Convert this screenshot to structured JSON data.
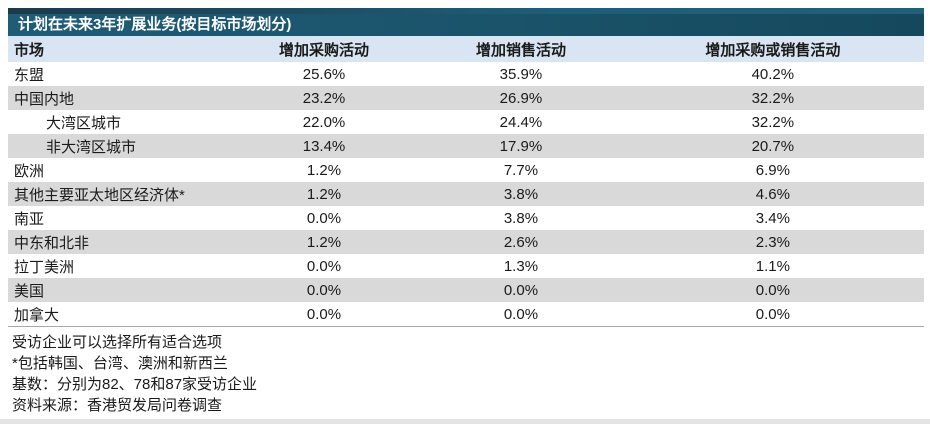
{
  "table": {
    "title": "计划在未来3年扩展业务(按目标市场划分)",
    "columns": [
      "市场",
      "增加采购活动",
      "增加销售活动",
      "增加采购或销售活动"
    ],
    "rows": [
      {
        "market": "东盟",
        "indent": false,
        "values": [
          "25.6%",
          "35.9%",
          "40.2%"
        ]
      },
      {
        "market": "中国内地",
        "indent": false,
        "values": [
          "23.2%",
          "26.9%",
          "32.2%"
        ]
      },
      {
        "market": "大湾区城市",
        "indent": true,
        "values": [
          "22.0%",
          "24.4%",
          "32.2%"
        ]
      },
      {
        "market": "非大湾区城市",
        "indent": true,
        "values": [
          "13.4%",
          "17.9%",
          "20.7%"
        ]
      },
      {
        "market": "欧洲",
        "indent": false,
        "values": [
          "1.2%",
          "7.7%",
          "6.9%"
        ]
      },
      {
        "market": "其他主要亚太地区经济体*",
        "indent": false,
        "values": [
          "1.2%",
          "3.8%",
          "4.6%"
        ]
      },
      {
        "market": "南亚",
        "indent": false,
        "values": [
          "0.0%",
          "3.8%",
          "3.4%"
        ]
      },
      {
        "market": "中东和北非",
        "indent": false,
        "values": [
          "1.2%",
          "2.6%",
          "2.3%"
        ]
      },
      {
        "market": "拉丁美洲",
        "indent": false,
        "values": [
          "0.0%",
          "1.3%",
          "1.1%"
        ]
      },
      {
        "market": "美国",
        "indent": false,
        "values": [
          "0.0%",
          "0.0%",
          "0.0%"
        ]
      },
      {
        "market": "加拿大",
        "indent": false,
        "values": [
          "0.0%",
          "0.0%",
          "0.0%"
        ]
      }
    ]
  },
  "footnotes": [
    "受访企业可以选择所有适合选项",
    "*包括韩国、台湾、澳洲和新西兰",
    "基数：分别为82、78和87家受访企业",
    "资料来源：香港贸发局问卷调查"
  ],
  "chart_data": {
    "type": "table",
    "title": "计划在未来3年扩展业务(按目标市场划分)",
    "categories": [
      "东盟",
      "中国内地",
      "大湾区城市",
      "非大湾区城市",
      "欧洲",
      "其他主要亚太地区经济体*",
      "南亚",
      "中东和北非",
      "拉丁美洲",
      "美国",
      "加拿大"
    ],
    "series": [
      {
        "name": "增加采购活动",
        "values": [
          25.6,
          23.2,
          22.0,
          13.4,
          1.2,
          1.2,
          0.0,
          1.2,
          0.0,
          0.0,
          0.0
        ]
      },
      {
        "name": "增加销售活动",
        "values": [
          35.9,
          26.9,
          24.4,
          17.9,
          7.7,
          3.8,
          3.8,
          2.6,
          1.3,
          0.0,
          0.0
        ]
      },
      {
        "name": "增加采购或销售活动",
        "values": [
          40.2,
          32.2,
          32.2,
          20.7,
          6.9,
          4.6,
          3.4,
          2.3,
          1.1,
          0.0,
          0.0
        ]
      }
    ]
  },
  "colors": {
    "title_bar_left": "#1F5C76",
    "title_bar_right": "#15485C",
    "title_top_strip_left": "#1C3A4B",
    "title_top_strip_right": "#206078",
    "title_text": "#FFFFFF",
    "header_row_bg": "#D9E5F2",
    "row_alt_bg": "#D9D9D9",
    "body_text": "#1A1A1A"
  }
}
